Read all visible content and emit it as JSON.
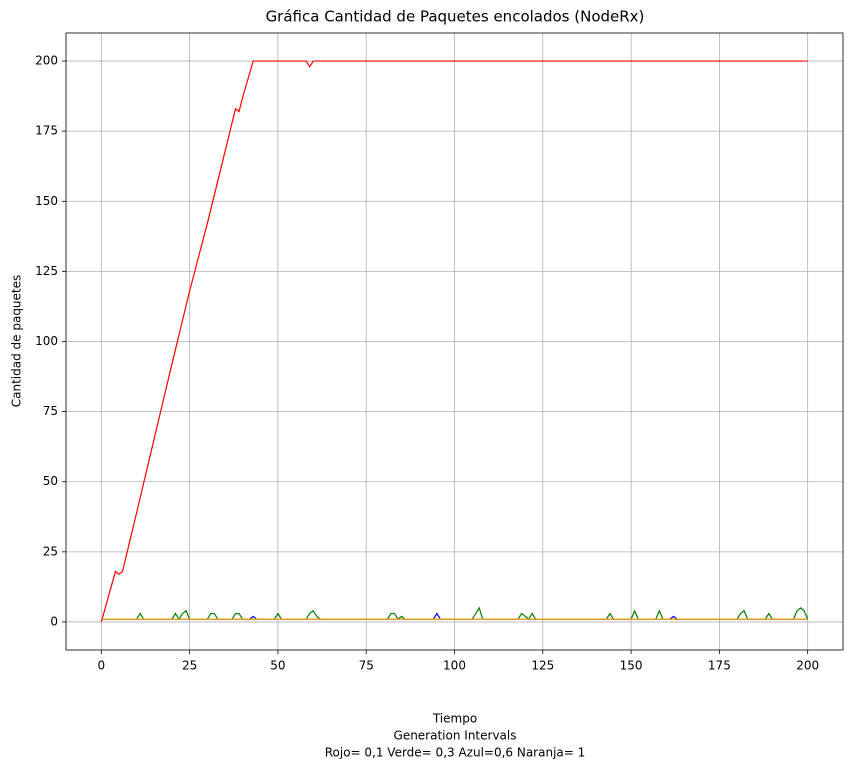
{
  "chart_data": {
    "type": "line",
    "title": "Gráfica Cantidad de Paquetes encolados (NodeRx)",
    "ylabel": "Cantidad de paquetes",
    "xlabel": [
      "Tiempo",
      "Generation Intervals",
      "Rojo= 0,1  Verde= 0,3  Azul=0,6  Naranja= 1"
    ],
    "xlim": [
      -10,
      210
    ],
    "ylim": [
      -10,
      210
    ],
    "xticks": [
      0,
      25,
      50,
      75,
      100,
      125,
      150,
      175,
      200
    ],
    "yticks": [
      0,
      25,
      50,
      75,
      100,
      125,
      150,
      175,
      200
    ],
    "grid": true,
    "series": [
      {
        "name": "Rojo",
        "color": "#ff0000",
        "x": [
          0,
          4,
          5,
          6,
          10,
          20,
          25,
          30,
          38,
          39,
          40,
          43,
          58,
          59,
          60,
          200
        ],
        "values": [
          0,
          18,
          17,
          18,
          39,
          92,
          118,
          142,
          183,
          182,
          187,
          200,
          200,
          198,
          200,
          200
        ]
      },
      {
        "name": "Verde",
        "color": "#008000",
        "x": [
          0,
          10,
          11,
          12,
          20,
          21,
          22,
          23,
          24,
          25,
          26,
          30,
          31,
          32,
          33,
          37,
          38,
          39,
          40,
          49,
          50,
          51,
          58,
          59,
          60,
          61,
          62,
          81,
          82,
          83,
          84,
          85,
          86,
          105,
          106,
          107,
          108,
          118,
          119,
          121,
          122,
          123,
          143,
          144,
          145,
          150,
          151,
          152,
          157,
          158,
          159,
          180,
          181,
          182,
          183,
          188,
          189,
          190,
          196,
          197,
          198,
          199,
          200
        ],
        "values": [
          1,
          1,
          3,
          1,
          1,
          3,
          1,
          3,
          4,
          1,
          1,
          1,
          3,
          3,
          1,
          1,
          3,
          3,
          1,
          1,
          3,
          1,
          1,
          3,
          4,
          2,
          1,
          1,
          3,
          3,
          1,
          2,
          1,
          1,
          3,
          5,
          1,
          1,
          3,
          1,
          3,
          1,
          1,
          3,
          1,
          1,
          4,
          1,
          1,
          4,
          1,
          1,
          3,
          4,
          1,
          1,
          3,
          1,
          1,
          4,
          5,
          4,
          1
        ]
      },
      {
        "name": "Azul",
        "color": "#0000ff",
        "x": [
          0,
          42,
          43,
          44,
          94,
          95,
          96,
          161,
          162,
          163,
          200
        ],
        "values": [
          1,
          1,
          2,
          1,
          1,
          3,
          1,
          1,
          2,
          1,
          1
        ]
      },
      {
        "name": "Naranja",
        "color": "#ffa500",
        "x": [
          0,
          200
        ],
        "values": [
          1,
          1
        ]
      }
    ]
  }
}
